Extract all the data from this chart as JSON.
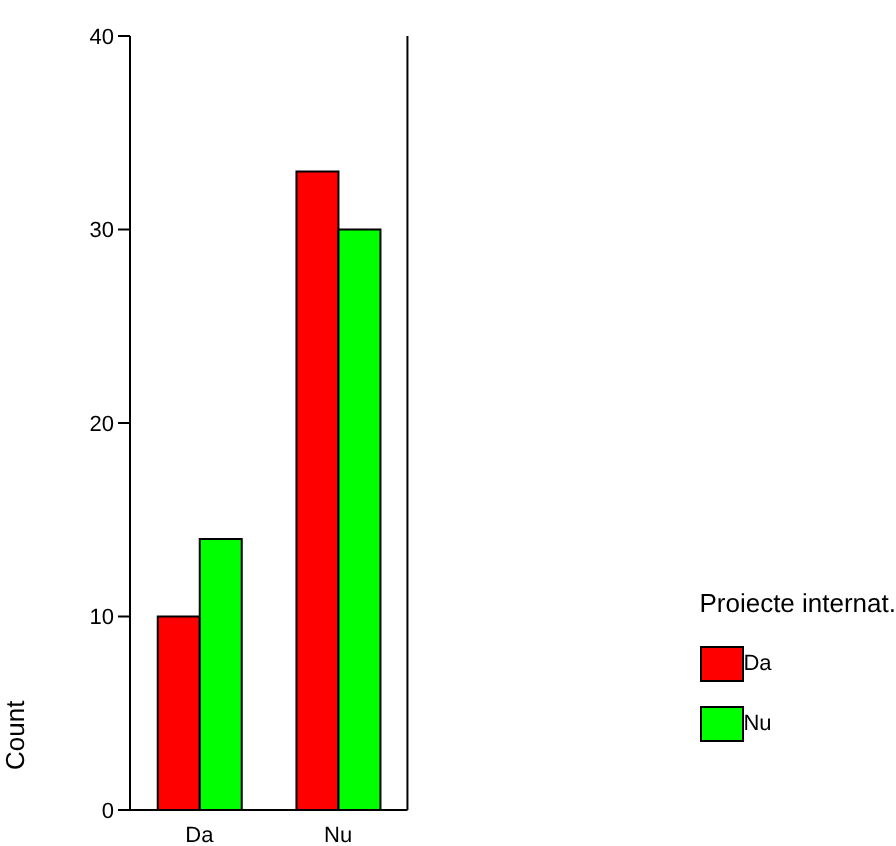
{
  "chart_data": {
    "type": "bar",
    "categories": [
      "Da",
      "Nu"
    ],
    "series": [
      {
        "name": "Da",
        "color": "#ff0000",
        "values": [
          10,
          33
        ]
      },
      {
        "name": "Nu",
        "color": "#00ff00",
        "values": [
          14,
          30
        ]
      }
    ],
    "ylabel": "Count",
    "legend_title": "Proiecte internat.",
    "legend": "bottom right",
    "ylim": [
      0,
      40
    ],
    "yticks": [
      0,
      10,
      20,
      30,
      40
    ],
    "grid": false
  }
}
